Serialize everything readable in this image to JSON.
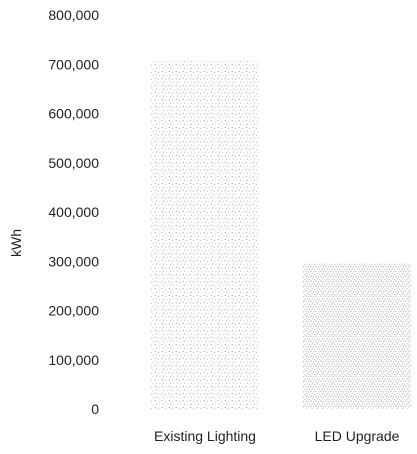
{
  "chart_data": {
    "type": "bar",
    "categories": [
      "Existing Lighting",
      "LED Upgrade"
    ],
    "values": [
      707000,
      295000
    ],
    "ylabel": "kWh",
    "ylim": [
      0,
      800000
    ],
    "yticks": [
      0,
      100000,
      200000,
      300000,
      400000,
      500000,
      600000,
      700000,
      800000
    ],
    "ytick_labels": [
      "0",
      "100,000",
      "200,000",
      "300,000",
      "400,000",
      "500,000",
      "600,000",
      "700,000",
      "800,000"
    ],
    "grid": false,
    "legend": "none",
    "bar_fill": "stippled grey dots",
    "bar_color": "#7a7a7a"
  }
}
